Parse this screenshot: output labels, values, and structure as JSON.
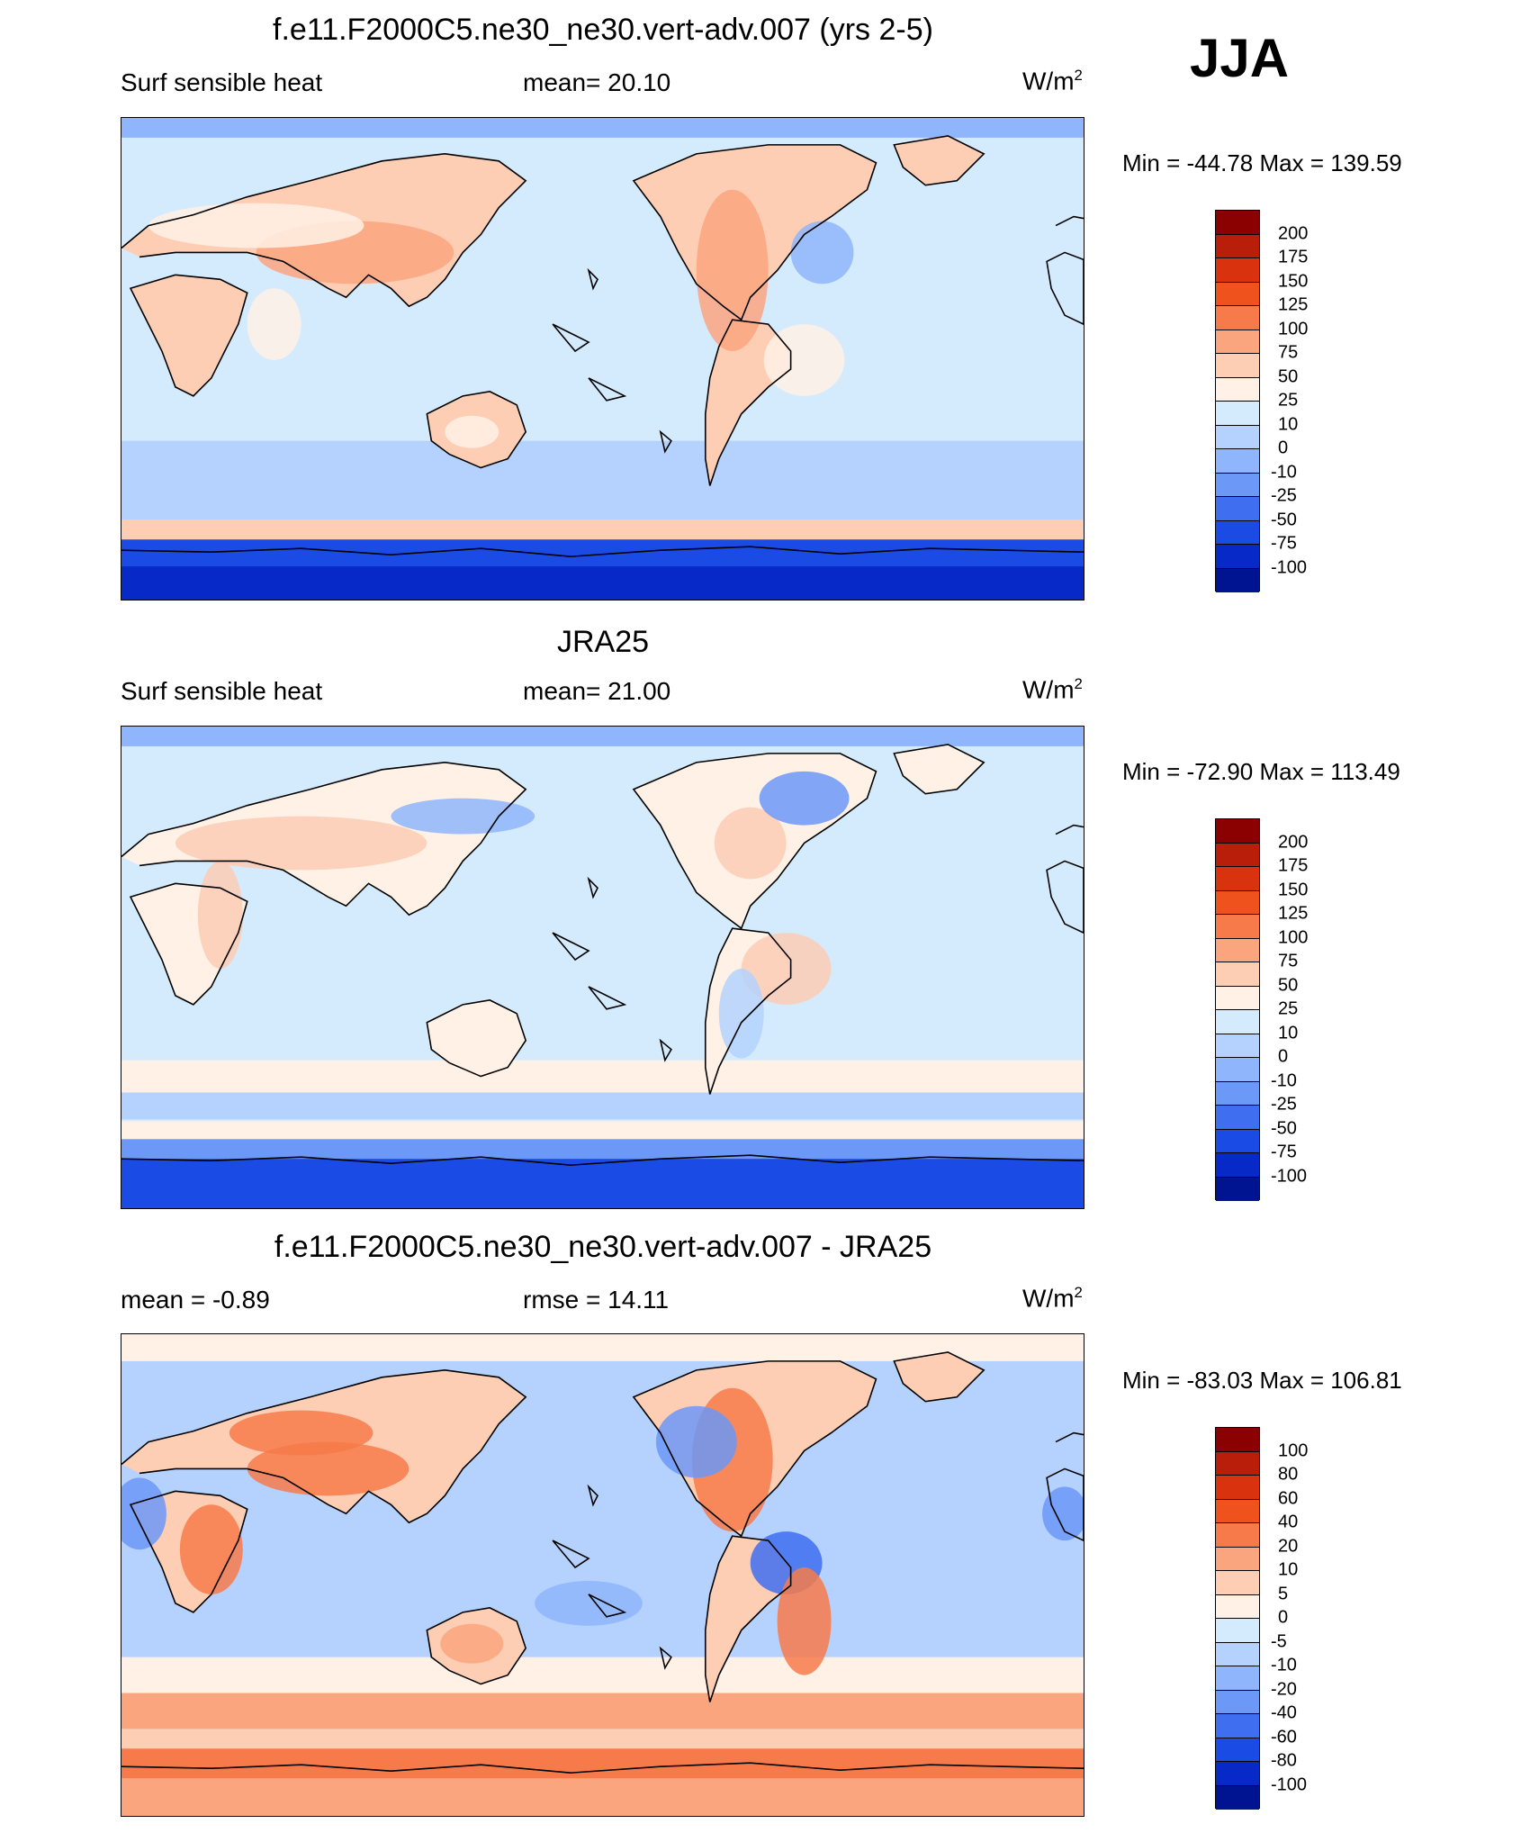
{
  "season": "JJA",
  "chart_data": [
    {
      "type": "heatmap",
      "title": "f.e11.F2000C5.ne30_ne30.vert-adv.007 (yrs 2-5)",
      "left_label": "Surf sensible heat",
      "center_label": "mean=  20.10",
      "units_base": "W/m",
      "units_exp": "2",
      "minmax": "Min = -44.78 Max = 139.59",
      "colorbar_levels": [
        "200",
        "175",
        "150",
        "125",
        "100",
        "75",
        "50",
        "25",
        "10",
        "0",
        "-10",
        "-25",
        "-50",
        "-75",
        "-100"
      ],
      "colors": [
        "#8b0000",
        "#b81e0a",
        "#d9320f",
        "#f0521e",
        "#f77a4a",
        "#fba57f",
        "#fdcdb4",
        "#fff1e6",
        "#d4eafd",
        "#b4d2fd",
        "#8fb6fc",
        "#6c98f7",
        "#3f6ef0",
        "#1a4be4",
        "#0629c8",
        "#001491"
      ]
    },
    {
      "type": "heatmap",
      "title": "JRA25",
      "left_label": "Surf sensible heat",
      "center_label": "mean=  21.00",
      "units_base": "W/m",
      "units_exp": "2",
      "minmax": "Min = -72.90 Max = 113.49",
      "colorbar_levels": [
        "200",
        "175",
        "150",
        "125",
        "100",
        "75",
        "50",
        "25",
        "10",
        "0",
        "-10",
        "-25",
        "-50",
        "-75",
        "-100"
      ],
      "colors": [
        "#8b0000",
        "#b81e0a",
        "#d9320f",
        "#f0521e",
        "#f77a4a",
        "#fba57f",
        "#fdcdb4",
        "#fff1e6",
        "#d4eafd",
        "#b4d2fd",
        "#8fb6fc",
        "#6c98f7",
        "#3f6ef0",
        "#1a4be4",
        "#0629c8",
        "#001491"
      ]
    },
    {
      "type": "heatmap",
      "title": "f.e11.F2000C5.ne30_ne30.vert-adv.007 - JRA25",
      "left_label": "mean =  -0.89",
      "center_label": "rmse =  14.11",
      "units_base": "W/m",
      "units_exp": "2",
      "minmax": "Min = -83.03 Max = 106.81",
      "colorbar_levels": [
        "100",
        "80",
        "60",
        "40",
        "20",
        "10",
        "5",
        "0",
        "-5",
        "-10",
        "-20",
        "-40",
        "-60",
        "-80",
        "-100"
      ],
      "colors": [
        "#8b0000",
        "#b81e0a",
        "#d9320f",
        "#f0521e",
        "#f77a4a",
        "#fba57f",
        "#fdcdb4",
        "#fff1e6",
        "#d4eafd",
        "#b4d2fd",
        "#8fb6fc",
        "#6c98f7",
        "#3f6ef0",
        "#1a4be4",
        "#0629c8",
        "#001491"
      ]
    }
  ]
}
